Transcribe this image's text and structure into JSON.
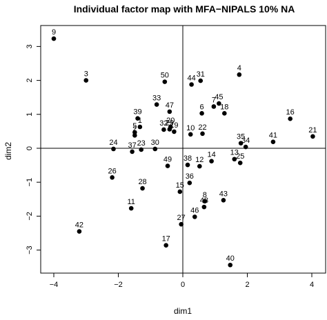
{
  "chart_data": {
    "type": "scatter",
    "title": "Individual factor map with MFA−NIPALS 10% NA",
    "xlabel": "dim1",
    "ylabel": "dim2",
    "xlim": [
      -4.3,
      4.3
    ],
    "ylim": [
      -3.7,
      3.5
    ],
    "xticks": [
      -4,
      -2,
      0,
      2,
      4
    ],
    "xtick_labels": [
      "−4",
      "−2",
      "0",
      "2",
      "4"
    ],
    "yticks": [
      -3,
      -2,
      -1,
      0,
      1,
      2,
      3
    ],
    "ytick_labels": [
      "−3",
      "−2",
      "−1",
      "0",
      "1",
      "2",
      "3"
    ],
    "reference_lines": {
      "x": 0,
      "y": 0
    },
    "grid": false,
    "points": [
      {
        "label": "1",
        "x": -1.33,
        "y": 0.63
      },
      {
        "label": "2",
        "x": -1.49,
        "y": 0.38
      },
      {
        "label": "3",
        "x": -3.0,
        "y": 2.0
      },
      {
        "label": "4",
        "x": 1.75,
        "y": 2.17
      },
      {
        "label": "5",
        "x": -1.49,
        "y": 0.47
      },
      {
        "label": "6",
        "x": 0.59,
        "y": 1.03
      },
      {
        "label": "7",
        "x": 0.96,
        "y": 1.23
      },
      {
        "label": "8",
        "x": 0.68,
        "y": -1.56
      },
      {
        "label": "9",
        "x": -4.0,
        "y": 3.23
      },
      {
        "label": "10",
        "x": 0.24,
        "y": 0.41
      },
      {
        "label": "11",
        "x": -1.6,
        "y": -1.77
      },
      {
        "label": "12",
        "x": 0.52,
        "y": -0.53
      },
      {
        "label": "13",
        "x": 1.6,
        "y": -0.32
      },
      {
        "label": "14",
        "x": 0.89,
        "y": -0.38
      },
      {
        "label": "15",
        "x": -0.09,
        "y": -1.28
      },
      {
        "label": "16",
        "x": 3.33,
        "y": 0.87
      },
      {
        "label": "17",
        "x": -0.52,
        "y": -2.86
      },
      {
        "label": "18",
        "x": 1.29,
        "y": 1.03
      },
      {
        "label": "19",
        "x": -0.27,
        "y": 0.49
      },
      {
        "label": "20",
        "x": -0.38,
        "y": 0.63
      },
      {
        "label": "21",
        "x": 4.03,
        "y": 0.35
      },
      {
        "label": "22",
        "x": 0.61,
        "y": 0.43
      },
      {
        "label": "23",
        "x": -1.29,
        "y": -0.04
      },
      {
        "label": "24",
        "x": -2.15,
        "y": -0.02
      },
      {
        "label": "25",
        "x": 1.78,
        "y": -0.43
      },
      {
        "label": "26",
        "x": -2.19,
        "y": -0.86
      },
      {
        "label": "27",
        "x": -0.05,
        "y": -2.24
      },
      {
        "label": "28",
        "x": -1.25,
        "y": -1.18
      },
      {
        "label": "29",
        "x": -0.41,
        "y": 0.56
      },
      {
        "label": "30",
        "x": -0.86,
        "y": -0.02
      },
      {
        "label": "31",
        "x": 0.55,
        "y": 1.99
      },
      {
        "label": "32",
        "x": -0.59,
        "y": 0.55
      },
      {
        "label": "33",
        "x": -0.81,
        "y": 1.29
      },
      {
        "label": "34",
        "x": 1.95,
        "y": 0.04
      },
      {
        "label": "35",
        "x": 1.8,
        "y": 0.15
      },
      {
        "label": "36",
        "x": 0.21,
        "y": -1.02
      },
      {
        "label": "37",
        "x": -1.57,
        "y": -0.1
      },
      {
        "label": "38",
        "x": 0.15,
        "y": -0.49
      },
      {
        "label": "39",
        "x": -1.4,
        "y": 0.88
      },
      {
        "label": "40",
        "x": 1.47,
        "y": -3.44
      },
      {
        "label": "41",
        "x": 2.8,
        "y": 0.19
      },
      {
        "label": "42",
        "x": -3.21,
        "y": -2.45
      },
      {
        "label": "43",
        "x": 1.26,
        "y": -1.53
      },
      {
        "label": "44",
        "x": 0.27,
        "y": 1.88
      },
      {
        "label": "45",
        "x": 1.12,
        "y": 1.32
      },
      {
        "label": "46",
        "x": 0.37,
        "y": -2.02
      },
      {
        "label": "47",
        "x": -0.41,
        "y": 1.08
      },
      {
        "label": "48",
        "x": 0.66,
        "y": -1.73
      },
      {
        "label": "49",
        "x": -0.47,
        "y": -0.52
      },
      {
        "label": "50",
        "x": -0.56,
        "y": 1.96
      }
    ]
  }
}
